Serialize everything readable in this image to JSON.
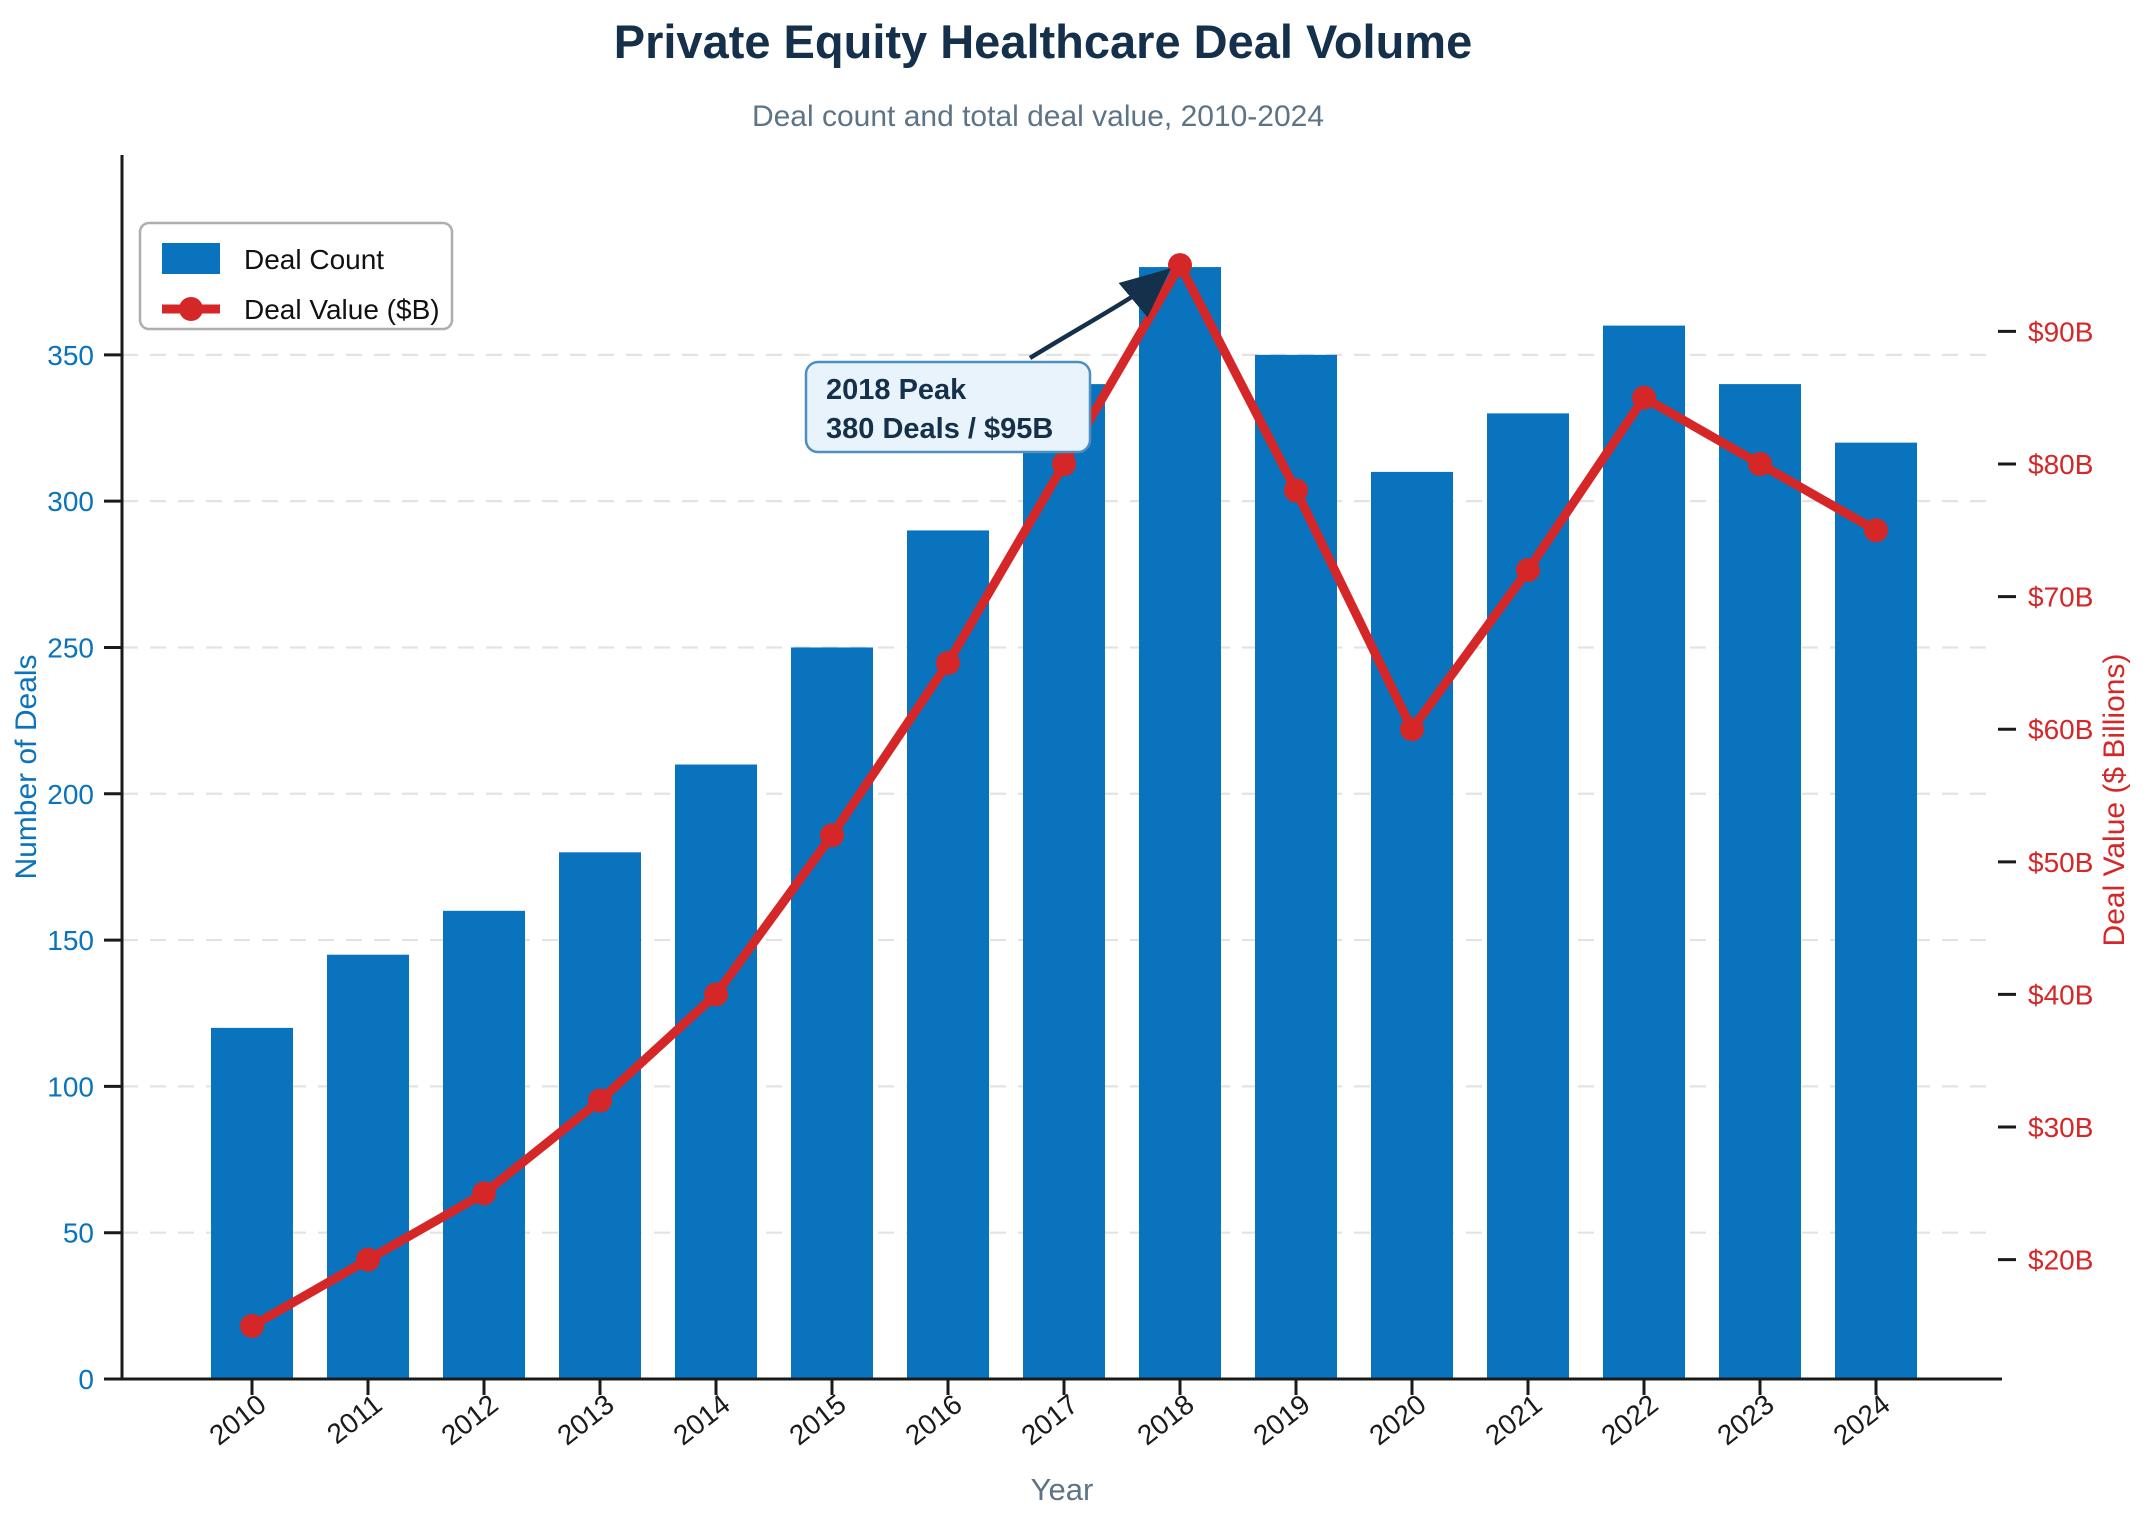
{
  "title": "Private Equity Healthcare Deal Volume",
  "subtitle": "Deal count and total deal value, 2010-2024",
  "chart_data": {
    "type": "bar+line",
    "categories": [
      "2010",
      "2011",
      "2012",
      "2013",
      "2014",
      "2015",
      "2016",
      "2017",
      "2018",
      "2019",
      "2020",
      "2021",
      "2022",
      "2023",
      "2024"
    ],
    "series": [
      {
        "name": "Deal Count",
        "type": "bar",
        "axis": "left",
        "color": "#0a73bd",
        "values": [
          120,
          145,
          160,
          180,
          210,
          250,
          290,
          340,
          380,
          350,
          310,
          330,
          360,
          340,
          320
        ]
      },
      {
        "name": "Deal Value ($B)",
        "type": "line",
        "axis": "right",
        "color": "#d62728",
        "values": [
          15,
          20,
          25,
          32,
          40,
          52,
          65,
          80,
          95,
          78,
          60,
          72,
          85,
          80,
          75
        ]
      }
    ],
    "xlabel": "Year",
    "left_axis": {
      "label": "Number of Deals",
      "color": "#0a73bd",
      "ticks": [
        0,
        50,
        100,
        150,
        200,
        250,
        300,
        350
      ],
      "range": [
        0,
        418.3
      ]
    },
    "right_axis": {
      "label": "Deal Value ($ Billions)",
      "color": "#d62728",
      "tick_values": [
        20,
        30,
        40,
        50,
        60,
        70,
        80,
        90
      ],
      "tick_prefix": "$",
      "tick_suffix": "B",
      "range": [
        11,
        103.3
      ]
    },
    "grid": {
      "axis": "y",
      "style": "dashed",
      "color": "#e3e3e3"
    },
    "legend_position": "upper left",
    "annotation": {
      "text": [
        "2018 Peak",
        "380 Deals / $95B"
      ],
      "target": {
        "year": "2018",
        "deal_count": 380,
        "deal_value_billions": 95
      }
    }
  },
  "colors": {
    "title": "#15304a",
    "subtitle": "#5d7487",
    "bar": "#0a73bd",
    "line": "#d62728",
    "axis_spine": "#1a1a1a",
    "x_tick_label": "#1a1a1a",
    "grid": "#e3e3e3",
    "xlabel": "#5d7487",
    "legend_border": "#aeaeae",
    "annotation_bg": "#e9f3fb",
    "annotation_border": "#4f8fbf",
    "annotation_text": "#15304a"
  }
}
